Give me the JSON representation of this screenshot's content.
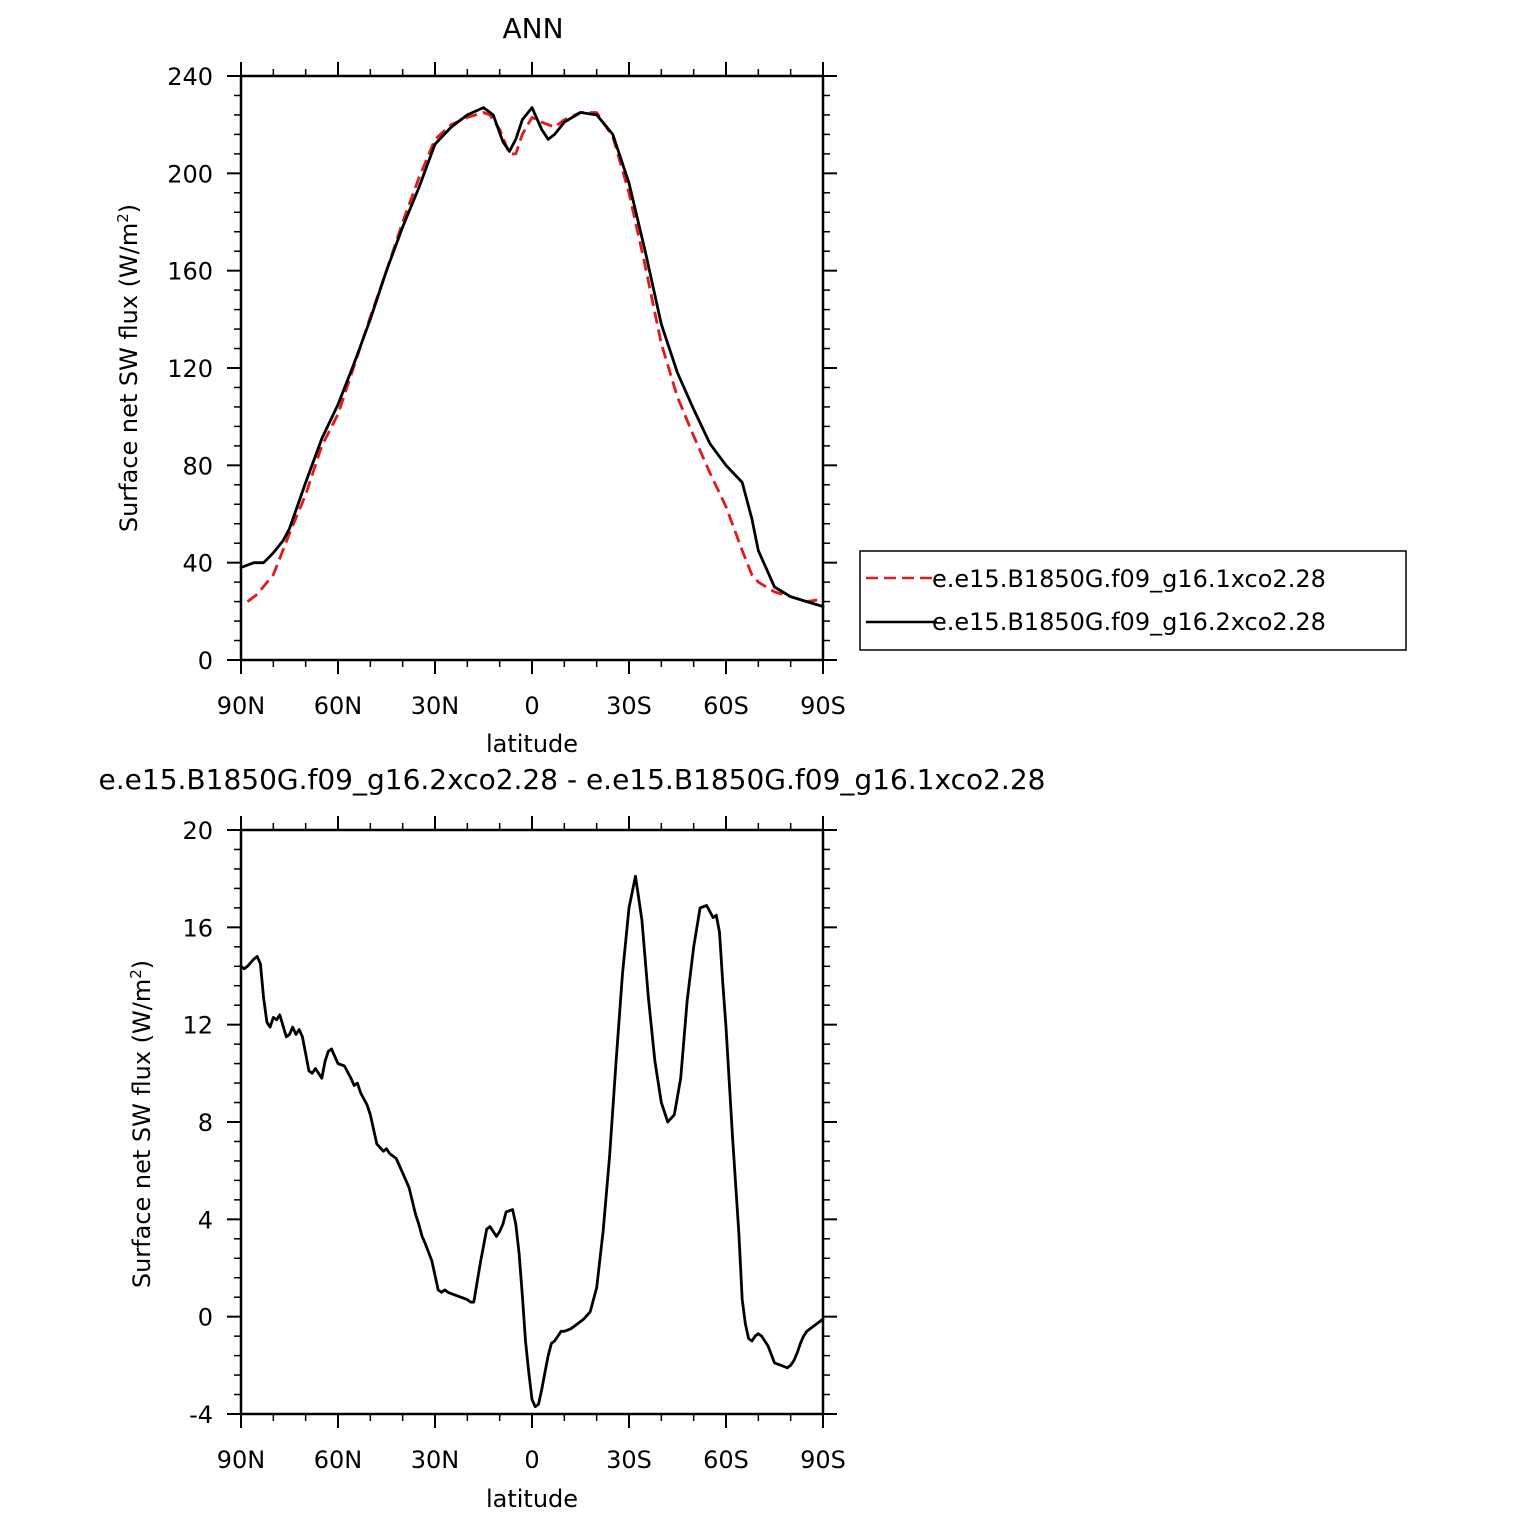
{
  "chart_data": [
    {
      "type": "line",
      "title": "ANN",
      "xlabel": "latitude",
      "ylabel_text": "Surface net SW flux (W/m",
      "ylabel_sup": "2",
      "ylabel_close": ")",
      "xlim": [
        90,
        -90
      ],
      "ylim": [
        0,
        240
      ],
      "y_ticks": [
        "0",
        "40",
        "80",
        "120",
        "160",
        "200",
        "240"
      ],
      "x_tick_values": [
        90,
        60,
        30,
        0,
        -30,
        -60,
        -90
      ],
      "x_tick_labels": [
        "90N",
        "60N",
        "30N",
        "0",
        "30S",
        "60S",
        "90S"
      ],
      "legend_position": "right",
      "series": [
        {
          "name": "e.e15.B1850G.f09_g16.1xco2.28",
          "color": "#e21a1a",
          "dash": "dashed",
          "x": [
            88,
            85,
            80,
            75,
            70,
            65,
            60,
            55,
            50,
            45,
            40,
            35,
            30,
            25,
            20,
            15,
            13,
            10,
            7,
            5,
            3,
            0,
            -3,
            -7,
            -10,
            -15,
            -20,
            -25,
            -30,
            -35,
            -40,
            -45,
            -50,
            -55,
            -60,
            -65,
            -68,
            -70,
            -75,
            -80,
            -85,
            -90
          ],
          "y": [
            24,
            27,
            35,
            52,
            68,
            88,
            101,
            121,
            141,
            160,
            180,
            198,
            214,
            220,
            223,
            225,
            224,
            218,
            208,
            208,
            216,
            223,
            221,
            219,
            222,
            225,
            225,
            215,
            192,
            162,
            130,
            108,
            92,
            77,
            63,
            45,
            35,
            32,
            28,
            26,
            24,
            25
          ]
        },
        {
          "name": "e.e15.B1850G.f09_g16.2xco2.28",
          "color": "#000000",
          "dash": "solid",
          "x": [
            90,
            86,
            83,
            80,
            77,
            75,
            70,
            65,
            60,
            55,
            50,
            45,
            40,
            35,
            30,
            25,
            20,
            15,
            12,
            9,
            7,
            5,
            3,
            0,
            -3,
            -5,
            -7,
            -10,
            -15,
            -20,
            -25,
            -30,
            -35,
            -40,
            -45,
            -50,
            -55,
            -60,
            -65,
            -68,
            -70,
            -75,
            -80,
            -85,
            -90
          ],
          "y": [
            38,
            40,
            40,
            44,
            49,
            54,
            73,
            91,
            105,
            122,
            140,
            160,
            178,
            194,
            212,
            219,
            224,
            227,
            224,
            213,
            209,
            214,
            222,
            227,
            218,
            214,
            216,
            221,
            225,
            224,
            216,
            196,
            168,
            138,
            118,
            103,
            89,
            80,
            73,
            58,
            45,
            30,
            26,
            24,
            22
          ]
        }
      ]
    },
    {
      "type": "line",
      "title": "e.e15.B1850G.f09_g16.2xco2.28 - e.e15.B1850G.f09_g16.1xco2.28",
      "xlabel": "latitude",
      "ylabel_text": "Surface net SW flux (W/m",
      "ylabel_sup": "2",
      "ylabel_close": ")",
      "xlim": [
        90,
        -90
      ],
      "ylim": [
        -4,
        20
      ],
      "y_ticks": [
        "-4",
        "0",
        "4",
        "8",
        "12",
        "16",
        "20"
      ],
      "x_tick_values": [
        90,
        60,
        30,
        0,
        -30,
        -60,
        -90
      ],
      "x_tick_labels": [
        "90N",
        "60N",
        "30N",
        "0",
        "30S",
        "60S",
        "90S"
      ],
      "series": [
        {
          "color": "#000000",
          "dash": "solid",
          "x": [
            90,
            89,
            88,
            86,
            85,
            84,
            83,
            82,
            81,
            80,
            79,
            78,
            76,
            75,
            74,
            73,
            72,
            71,
            70,
            69,
            68,
            67,
            65,
            64,
            63,
            62,
            60,
            58,
            56,
            55,
            54,
            53,
            51,
            50,
            48,
            46,
            45,
            44,
            42,
            40,
            38,
            36,
            35,
            34,
            33,
            31,
            29,
            28,
            27,
            26,
            24,
            22,
            20,
            19,
            18,
            16,
            14,
            13,
            12,
            11,
            10,
            9,
            8,
            6,
            5,
            4,
            3,
            2,
            1,
            0,
            -1,
            -2,
            -3,
            -4,
            -5,
            -6,
            -7,
            -8,
            -9,
            -10,
            -12,
            -14,
            -16,
            -18,
            -20,
            -22,
            -24,
            -26,
            -28,
            -30,
            -32,
            -34,
            -36,
            -38,
            -40,
            -42,
            -44,
            -46,
            -48,
            -50,
            -52,
            -54,
            -56,
            -57,
            -58,
            -59,
            -60,
            -62,
            -64,
            -65,
            -66,
            -67,
            -68,
            -69,
            -70,
            -71,
            -73,
            -75,
            -77,
            -79,
            -80,
            -81,
            -82,
            -83,
            -84,
            -85,
            -86,
            -87,
            -88,
            -89,
            -90
          ],
          "y": [
            14.4,
            14.3,
            14.4,
            14.7,
            14.8,
            14.5,
            13.1,
            12.1,
            11.9,
            12.3,
            12.2,
            12.4,
            11.5,
            11.6,
            11.9,
            11.6,
            11.8,
            11.5,
            10.8,
            10.1,
            10.0,
            10.2,
            9.8,
            10.5,
            10.9,
            11.0,
            10.4,
            10.3,
            9.8,
            9.5,
            9.6,
            9.2,
            8.7,
            8.3,
            7.1,
            6.8,
            6.9,
            6.7,
            6.5,
            5.9,
            5.3,
            4.2,
            3.8,
            3.3,
            3.0,
            2.3,
            1.1,
            1.0,
            1.1,
            1.0,
            0.9,
            0.8,
            0.7,
            0.6,
            0.6,
            2.2,
            3.6,
            3.7,
            3.5,
            3.3,
            3.5,
            3.8,
            4.3,
            4.4,
            3.8,
            2.6,
            0.9,
            -1.0,
            -2.3,
            -3.4,
            -3.7,
            -3.6,
            -3.0,
            -2.3,
            -1.6,
            -1.1,
            -1.0,
            -0.8,
            -0.6,
            -0.6,
            -0.5,
            -0.3,
            -0.1,
            0.2,
            1.2,
            3.5,
            6.6,
            10.5,
            14.1,
            16.8,
            18.1,
            16.3,
            13.1,
            10.5,
            8.8,
            8.0,
            8.3,
            9.8,
            13.0,
            15.2,
            16.8,
            16.9,
            16.4,
            16.5,
            15.8,
            13.7,
            11.9,
            7.4,
            3.4,
            0.7,
            -0.3,
            -0.9,
            -1.0,
            -0.8,
            -0.7,
            -0.8,
            -1.2,
            -1.9,
            -2.0,
            -2.1,
            -2.0,
            -1.8,
            -1.5,
            -1.1,
            -0.8,
            -0.6,
            -0.5,
            -0.4,
            -0.3,
            -0.2,
            -0.1
          ]
        }
      ]
    }
  ]
}
